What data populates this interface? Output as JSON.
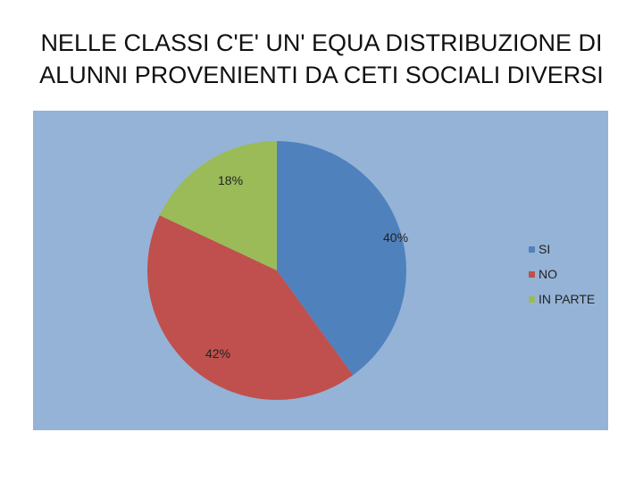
{
  "title": {
    "line1": "NELLE CLASSI C'E' UN' EQUA DISTRIBUZIONE DI",
    "line2": "ALUNNI PROVENIENTI DA CETI SOCIALI DIVERSI"
  },
  "chart_data": {
    "type": "pie",
    "title": "NELLE CLASSI C'E' UN' EQUA DISTRIBUZIONE DI ALUNNI PROVENIENTI DA CETI SOCIALI DIVERSI",
    "categories": [
      "SI",
      "NO",
      "IN PARTE"
    ],
    "values": [
      40,
      42,
      18
    ],
    "labels": [
      "40%",
      "42%",
      "18%"
    ],
    "colors": [
      "#4f81bd",
      "#c0504d",
      "#9bbb59"
    ],
    "background": "#95b3d7",
    "legend": "right",
    "start": "top, clockwise"
  }
}
